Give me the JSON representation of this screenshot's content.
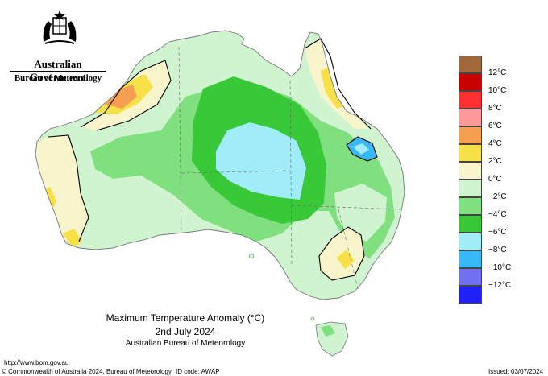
{
  "header": {
    "government": "Australian Government",
    "bureau": "Bureau of Meteorology"
  },
  "title": {
    "line1": "Maximum Temperature Anomaly (°C)",
    "line2": "2nd July 2024",
    "line3": "Australian Bureau of Meteorology"
  },
  "legend": {
    "items": [
      {
        "label": "12°C",
        "color": "#a0683a"
      },
      {
        "label": "10°C",
        "color": "#c80000"
      },
      {
        "label": "8°C",
        "color": "#ff3030"
      },
      {
        "label": "6°C",
        "color": "#ff9898"
      },
      {
        "label": "4°C",
        "color": "#f4a050"
      },
      {
        "label": "2°C",
        "color": "#f8e048"
      },
      {
        "label": "0°C",
        "color": "#f8f4cc"
      },
      {
        "label": "−2°C",
        "color": "#d0f4d0"
      },
      {
        "label": "−4°C",
        "color": "#80e080"
      },
      {
        "label": "−6°C",
        "color": "#38c838"
      },
      {
        "label": "−8°C",
        "color": "#a0ecf8"
      },
      {
        "label": "−10°C",
        "color": "#38b8f8"
      },
      {
        "label": "−12°C",
        "color": "#7070f0"
      },
      {
        "label": "",
        "color": "#2020f8"
      }
    ]
  },
  "footer": {
    "url": "http://www.bom.gov.au",
    "copyright": "© Commonwealth of Australia 2024, Bureau of Meteorology",
    "id_code": "ID code: AWAP",
    "issued": "Issued: 03/07/2024"
  }
}
